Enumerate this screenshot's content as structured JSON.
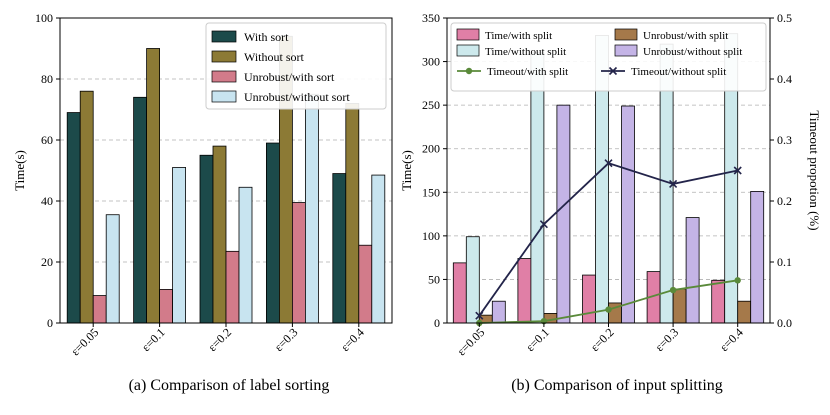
{
  "chart_data": [
    {
      "type": "bar",
      "caption": "(a) Comparison of label sorting",
      "categories": [
        "ε=0.05",
        "ε=0.1",
        "ε=0.2",
        "ε=0.3",
        "ε=0.4"
      ],
      "ylabel": "Time(s)",
      "ylim": [
        0,
        100
      ],
      "yticks": [
        0,
        20,
        40,
        60,
        80,
        100
      ],
      "grid": "horizontal dashed",
      "legend": "top-right",
      "series": [
        {
          "name": "With sort",
          "color": "#1c4a4a",
          "values": [
            69,
            74,
            55,
            59,
            49
          ]
        },
        {
          "name": "Without sort",
          "color": "#8c7a35",
          "values": [
            76,
            90,
            58,
            94,
            72
          ]
        },
        {
          "name": "Unrobust/with sort",
          "color": "#d27b8a",
          "values": [
            9,
            11,
            23.5,
            39.5,
            25.5
          ]
        },
        {
          "name": "Unrobust/without sort",
          "color": "#c8e4f0",
          "values": [
            35.5,
            51,
            44.5,
            75,
            48.5
          ]
        }
      ]
    },
    {
      "type": "bar+line",
      "caption": "(b) Comparison of input splitting",
      "categories": [
        "ε=0.05",
        "ε=0.1",
        "ε=0.2",
        "ε=0.3",
        "ε=0.4"
      ],
      "ylabel": "Time(s)",
      "ylabel_right": "Timeout propotion (%)",
      "ylim": [
        0,
        350
      ],
      "yticks": [
        0,
        50,
        100,
        150,
        200,
        250,
        300,
        350
      ],
      "ylim_right": [
        0,
        0.5
      ],
      "yticks_right": [
        "0.0",
        "0.1",
        "0.2",
        "0.3",
        "0.4",
        "0.5"
      ],
      "grid": "horizontal dashed",
      "legend": "top",
      "series": [
        {
          "name": "Time/with split",
          "color": "#e07fa6",
          "values": [
            69,
            74,
            55,
            59,
            49
          ]
        },
        {
          "name": "Time/without split",
          "color": "#cde9ec",
          "values": [
            99,
            310,
            330,
            320,
            332
          ]
        },
        {
          "name": "Unrobust/with split",
          "color": "#a5794a",
          "values": [
            9,
            11,
            23,
            39,
            25
          ]
        },
        {
          "name": "Unrobust/without split",
          "color": "#c4b4e6",
          "values": [
            25,
            250,
            249,
            121,
            151
          ]
        }
      ],
      "lines": [
        {
          "name": "Timeout/with split",
          "color": "#5a8a3a",
          "marker": "circle",
          "values": [
            0.0,
            0.003,
            0.022,
            0.054,
            0.07
          ]
        },
        {
          "name": "Timeout/without split",
          "color": "#23244a",
          "marker": "x",
          "values": [
            0.012,
            0.162,
            0.262,
            0.228,
            0.25
          ]
        }
      ]
    }
  ]
}
